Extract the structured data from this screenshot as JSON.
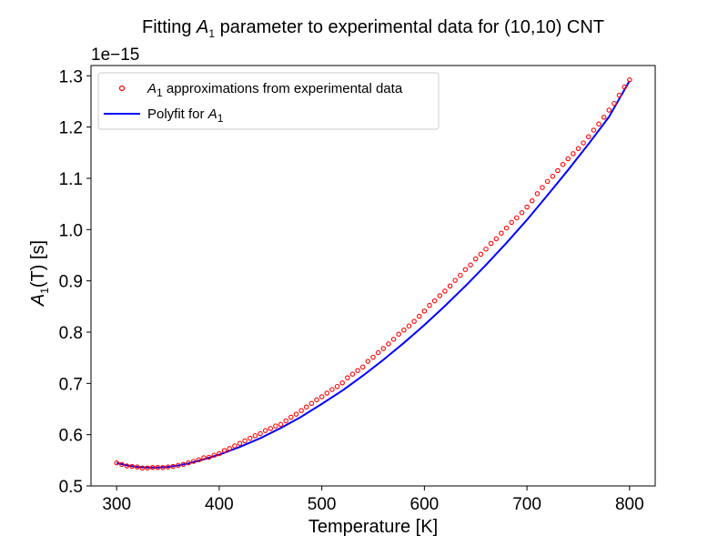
{
  "chart_data": {
    "type": "scatter",
    "title": {
      "prefix": "Fitting ",
      "symbol": "A",
      "subscript": "1",
      "suffix": " parameter to experimental data for (10,10) CNT"
    },
    "xlabel": "Temperature [K]",
    "ylabel": {
      "symbol": "A",
      "subscript": "1",
      "suffix": "(T) [s]"
    },
    "y_offset_label": "1e−15",
    "xlim": [
      275,
      825
    ],
    "ylim": [
      0.5,
      1.32
    ],
    "x_ticks": [
      300,
      400,
      500,
      600,
      700,
      800
    ],
    "x_tick_labels": [
      "300",
      "400",
      "500",
      "600",
      "700",
      "800"
    ],
    "y_ticks": [
      0.5,
      0.6,
      0.7,
      0.8,
      0.9,
      1.0,
      1.1,
      1.2,
      1.3
    ],
    "y_tick_labels": [
      "0.5",
      "0.6",
      "0.7",
      "0.8",
      "0.9",
      "1.0",
      "1.1",
      "1.2",
      "1.3"
    ],
    "legend_position": "top-left",
    "grid": false,
    "series": [
      {
        "kind": "markers",
        "marker": "open-circle",
        "color": "#ff0000",
        "label": {
          "symbol": "A",
          "subscript": "1",
          "suffix": " approximations from experimental data"
        },
        "x": [
          300,
          305,
          310,
          315,
          320,
          325,
          330,
          335,
          340,
          345,
          350,
          355,
          360,
          365,
          370,
          375,
          380,
          385,
          390,
          395,
          400,
          405,
          410,
          415,
          420,
          425,
          430,
          435,
          440,
          445,
          450,
          455,
          460,
          465,
          470,
          475,
          480,
          485,
          490,
          495,
          500,
          505,
          510,
          515,
          520,
          525,
          530,
          535,
          540,
          545,
          550,
          555,
          560,
          565,
          570,
          575,
          580,
          585,
          590,
          595,
          600,
          605,
          610,
          615,
          620,
          625,
          630,
          635,
          640,
          645,
          650,
          655,
          660,
          665,
          670,
          675,
          680,
          685,
          690,
          695,
          700,
          705,
          710,
          715,
          720,
          725,
          730,
          735,
          740,
          745,
          750,
          755,
          760,
          765,
          770,
          775,
          780,
          785,
          790,
          795,
          800
        ],
        "y": [
          0.545,
          0.542,
          0.539,
          0.538,
          0.537,
          0.535,
          0.535,
          0.536,
          0.536,
          0.536,
          0.537,
          0.538,
          0.54,
          0.542,
          0.545,
          0.548,
          0.551,
          0.555,
          0.556,
          0.56,
          0.563,
          0.569,
          0.573,
          0.578,
          0.583,
          0.588,
          0.593,
          0.598,
          0.602,
          0.608,
          0.612,
          0.617,
          0.62,
          0.627,
          0.634,
          0.64,
          0.647,
          0.654,
          0.661,
          0.668,
          0.674,
          0.681,
          0.688,
          0.694,
          0.701,
          0.711,
          0.718,
          0.725,
          0.732,
          0.743,
          0.751,
          0.76,
          0.768,
          0.777,
          0.786,
          0.796,
          0.804,
          0.812,
          0.821,
          0.831,
          0.841,
          0.852,
          0.861,
          0.871,
          0.88,
          0.89,
          0.901,
          0.911,
          0.922,
          0.931,
          0.943,
          0.952,
          0.962,
          0.973,
          0.982,
          0.993,
          1.003,
          1.014,
          1.023,
          1.033,
          1.044,
          1.056,
          1.07,
          1.082,
          1.094,
          1.104,
          1.115,
          1.127,
          1.138,
          1.148,
          1.158,
          1.169,
          1.181,
          1.194,
          1.206,
          1.219,
          1.233,
          1.246,
          1.262,
          1.278,
          1.292
        ]
      },
      {
        "kind": "line",
        "color": "#0000ff",
        "label": {
          "prefix": "Polyfit for ",
          "symbol": "A",
          "subscript": "1"
        },
        "x": [
          300,
          310,
          320,
          330,
          340,
          350,
          360,
          370,
          380,
          390,
          400,
          420,
          440,
          460,
          480,
          500,
          520,
          540,
          560,
          580,
          600,
          620,
          640,
          660,
          680,
          700,
          720,
          740,
          760,
          780,
          800
        ],
        "y": [
          0.545,
          0.54,
          0.537,
          0.536,
          0.536,
          0.537,
          0.54,
          0.544,
          0.549,
          0.555,
          0.561,
          0.576,
          0.593,
          0.613,
          0.635,
          0.66,
          0.686,
          0.715,
          0.746,
          0.779,
          0.814,
          0.851,
          0.89,
          0.931,
          0.974,
          1.019,
          1.067,
          1.116,
          1.167,
          1.22,
          1.29
        ]
      }
    ]
  }
}
